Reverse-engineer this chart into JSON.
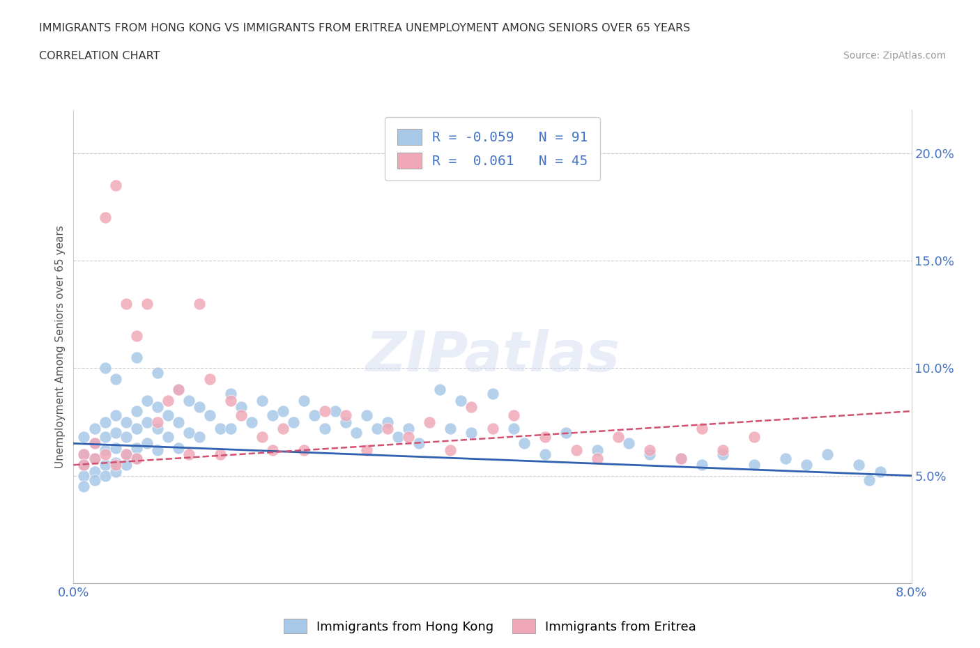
{
  "title_line1": "IMMIGRANTS FROM HONG KONG VS IMMIGRANTS FROM ERITREA UNEMPLOYMENT AMONG SENIORS OVER 65 YEARS",
  "title_line2": "CORRELATION CHART",
  "source_text": "Source: ZipAtlas.com",
  "ylabel": "Unemployment Among Seniors over 65 years",
  "xlim": [
    0.0,
    0.08
  ],
  "ylim": [
    0.0,
    0.22
  ],
  "yticks_right": [
    0.05,
    0.1,
    0.15,
    0.2
  ],
  "ytick_right_labels": [
    "5.0%",
    "10.0%",
    "15.0%",
    "20.0%"
  ],
  "hk_color": "#a8c8e8",
  "er_color": "#f0a8b8",
  "hk_line_color": "#3060b0",
  "er_line_color": "#d05070",
  "hk_R": -0.059,
  "hk_N": 91,
  "er_R": 0.061,
  "er_N": 45,
  "legend_label_hk": "Immigrants from Hong Kong",
  "legend_label_er": "Immigrants from Eritrea",
  "watermark": "ZIPatlas",
  "axis_label_color": "#4472c4",
  "hk_scatter_x": [
    0.001,
    0.001,
    0.001,
    0.001,
    0.001,
    0.002,
    0.002,
    0.002,
    0.002,
    0.002,
    0.003,
    0.003,
    0.003,
    0.003,
    0.003,
    0.004,
    0.004,
    0.004,
    0.004,
    0.004,
    0.005,
    0.005,
    0.005,
    0.005,
    0.006,
    0.006,
    0.006,
    0.006,
    0.007,
    0.007,
    0.007,
    0.008,
    0.008,
    0.008,
    0.009,
    0.009,
    0.01,
    0.01,
    0.01,
    0.011,
    0.011,
    0.012,
    0.012,
    0.013,
    0.014,
    0.015,
    0.015,
    0.016,
    0.017,
    0.018,
    0.019,
    0.02,
    0.021,
    0.022,
    0.023,
    0.024,
    0.025,
    0.026,
    0.027,
    0.028,
    0.029,
    0.03,
    0.031,
    0.032,
    0.033,
    0.035,
    0.036,
    0.037,
    0.038,
    0.04,
    0.042,
    0.043,
    0.045,
    0.047,
    0.05,
    0.053,
    0.055,
    0.058,
    0.06,
    0.062,
    0.065,
    0.068,
    0.07,
    0.072,
    0.075,
    0.076,
    0.077,
    0.003,
    0.004,
    0.006,
    0.008
  ],
  "hk_scatter_y": [
    0.068,
    0.06,
    0.055,
    0.05,
    0.045,
    0.072,
    0.065,
    0.058,
    0.052,
    0.048,
    0.075,
    0.068,
    0.062,
    0.055,
    0.05,
    0.078,
    0.07,
    0.063,
    0.056,
    0.052,
    0.075,
    0.068,
    0.06,
    0.055,
    0.08,
    0.072,
    0.063,
    0.058,
    0.085,
    0.075,
    0.065,
    0.082,
    0.072,
    0.062,
    0.078,
    0.068,
    0.09,
    0.075,
    0.063,
    0.085,
    0.07,
    0.082,
    0.068,
    0.078,
    0.072,
    0.088,
    0.072,
    0.082,
    0.075,
    0.085,
    0.078,
    0.08,
    0.075,
    0.085,
    0.078,
    0.072,
    0.08,
    0.075,
    0.07,
    0.078,
    0.072,
    0.075,
    0.068,
    0.072,
    0.065,
    0.09,
    0.072,
    0.085,
    0.07,
    0.088,
    0.072,
    0.065,
    0.06,
    0.07,
    0.062,
    0.065,
    0.06,
    0.058,
    0.055,
    0.06,
    0.055,
    0.058,
    0.055,
    0.06,
    0.055,
    0.048,
    0.052,
    0.1,
    0.095,
    0.105,
    0.098
  ],
  "er_scatter_x": [
    0.001,
    0.001,
    0.002,
    0.002,
    0.003,
    0.003,
    0.004,
    0.004,
    0.005,
    0.005,
    0.006,
    0.006,
    0.007,
    0.008,
    0.009,
    0.01,
    0.011,
    0.012,
    0.013,
    0.014,
    0.015,
    0.016,
    0.018,
    0.019,
    0.02,
    0.022,
    0.024,
    0.026,
    0.028,
    0.03,
    0.032,
    0.034,
    0.036,
    0.038,
    0.04,
    0.042,
    0.045,
    0.048,
    0.05,
    0.052,
    0.055,
    0.058,
    0.06,
    0.062,
    0.065
  ],
  "er_scatter_y": [
    0.06,
    0.055,
    0.065,
    0.058,
    0.17,
    0.06,
    0.185,
    0.055,
    0.13,
    0.06,
    0.115,
    0.058,
    0.13,
    0.075,
    0.085,
    0.09,
    0.06,
    0.13,
    0.095,
    0.06,
    0.085,
    0.078,
    0.068,
    0.062,
    0.072,
    0.062,
    0.08,
    0.078,
    0.062,
    0.072,
    0.068,
    0.075,
    0.062,
    0.082,
    0.072,
    0.078,
    0.068,
    0.062,
    0.058,
    0.068,
    0.062,
    0.058,
    0.072,
    0.062,
    0.068
  ]
}
